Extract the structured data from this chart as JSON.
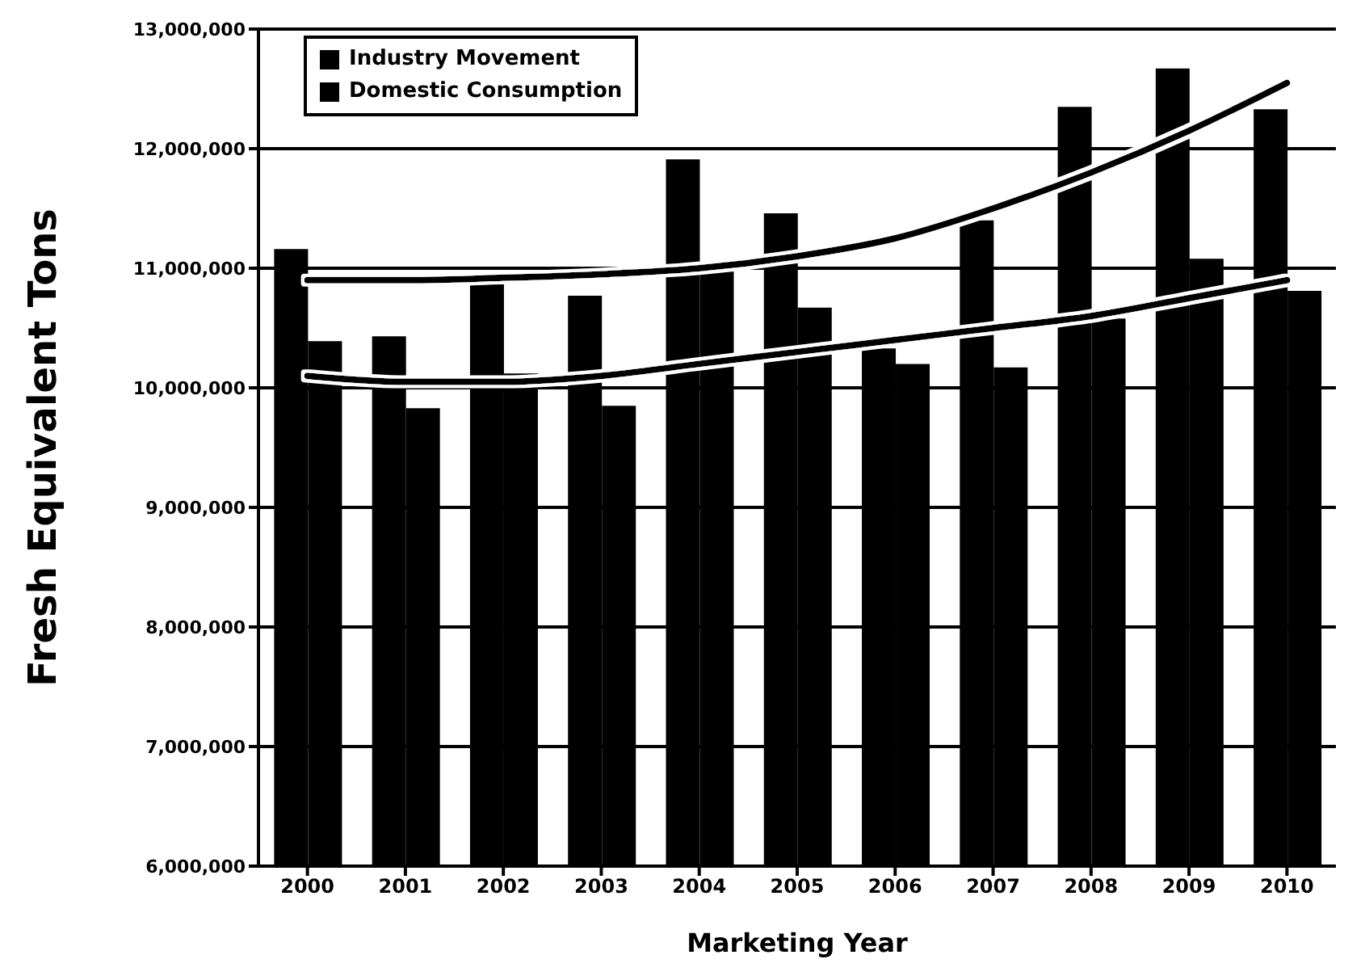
{
  "chart_data": {
    "type": "bar",
    "xlabel": "Marketing Year",
    "ylabel": "Fresh Equivalent Tons",
    "categories": [
      "2000",
      "2001",
      "2002",
      "2003",
      "2004",
      "2005",
      "2006",
      "2007",
      "2008",
      "2009",
      "2010"
    ],
    "series": [
      {
        "name": "Industry Movement",
        "color": "#000000",
        "values": [
          11160000,
          10430000,
          10880000,
          10770000,
          11910000,
          11460000,
          10330000,
          11400000,
          12350000,
          12670000,
          12330000
        ]
      },
      {
        "name": "Domestic Consumption",
        "color": "#000000",
        "values": [
          10390000,
          9830000,
          10120000,
          9850000,
          11050000,
          10670000,
          10200000,
          10170000,
          10580000,
          11080000,
          10810000
        ]
      },
      {
        "type": "line",
        "color": "#000000",
        "values": [
          10900000,
          10900000,
          10920000,
          10950000,
          11000000,
          11100000,
          11250000,
          11500000,
          11800000,
          12150000,
          12550000
        ]
      },
      {
        "type": "line",
        "color": "#000000",
        "values": [
          10100000,
          10050000,
          10050000,
          10100000,
          10200000,
          10300000,
          10400000,
          10500000,
          10600000,
          10750000,
          10900000
        ]
      }
    ],
    "ylim": [
      6000000,
      13000000
    ],
    "yticks": [
      {
        "value": 6000000,
        "label": "6,000,000"
      },
      {
        "value": 7000000,
        "label": "7,000,000"
      },
      {
        "value": 8000000,
        "label": "8,000,000"
      },
      {
        "value": 9000000,
        "label": "9,000,000"
      },
      {
        "value": 10000000,
        "label": "10,000,000"
      },
      {
        "value": 11000000,
        "label": "11,000,000"
      },
      {
        "value": 12000000,
        "label": "12,000,000"
      },
      {
        "value": 13000000,
        "label": "13,000,000"
      }
    ],
    "grid": "y",
    "legend": "top left",
    "marker": "none",
    "line_style": "solid"
  }
}
